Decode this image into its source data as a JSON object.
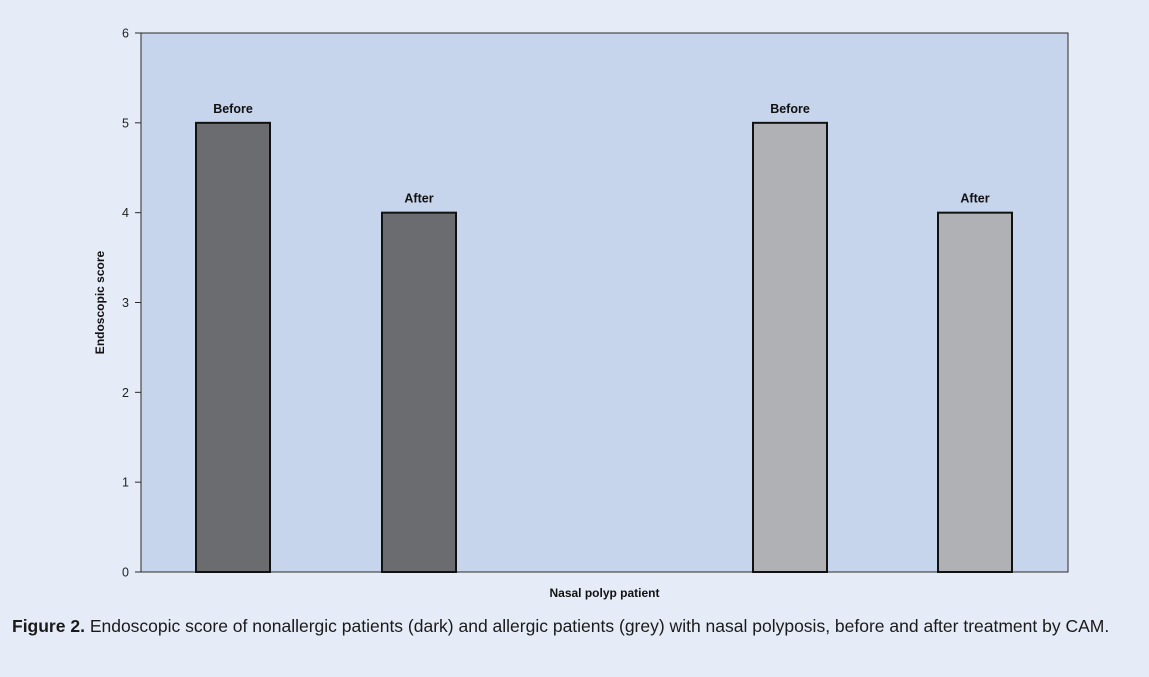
{
  "chart_data": {
    "type": "bar",
    "categories": [
      "Before",
      "After",
      "Before",
      "After"
    ],
    "values": [
      5,
      4,
      5,
      4
    ],
    "bar_colors": [
      "#6b6c70",
      "#6b6c70",
      "#b0b1b5",
      "#b0b1b5"
    ],
    "plot_background": "#c6d5ec",
    "xlabel": "Nasal polyp patient",
    "ylabel": "Endoscopic score",
    "ylim": [
      0,
      6
    ],
    "yticks": [
      0,
      1,
      2,
      3,
      4,
      5,
      6
    ],
    "grid": false
  },
  "caption": {
    "label": "Figure 2.",
    "text": "Endoscopic score of nonallergic patients (dark) and allergic patients (grey) with nasal polyposis, before and after treatment by CAM."
  }
}
